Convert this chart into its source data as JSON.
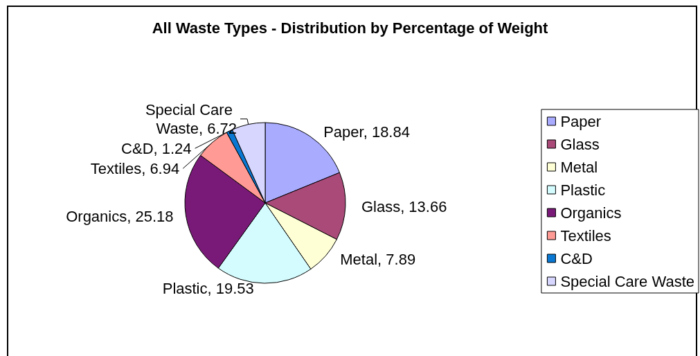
{
  "chart_data": {
    "type": "pie",
    "title": "All Waste Types - Distribution by Percentage of Weight",
    "categories": [
      "Paper",
      "Glass",
      "Metal",
      "Plastic",
      "Organics",
      "Textiles",
      "C&D",
      "Special Care Waste"
    ],
    "values": [
      18.84,
      13.66,
      7.89,
      19.53,
      25.18,
      6.94,
      1.24,
      6.72
    ],
    "value_labels": [
      "Paper, 18.84",
      "Glass, 13.66",
      "Metal, 7.89",
      "Plastic, 19.53",
      "Organics, 25.18",
      "Textiles, 6.94",
      "C&D, 1.24",
      "Special Care Waste, 6.72"
    ],
    "colors": [
      "#a9abff",
      "#a94a78",
      "#ffffd6",
      "#d4fcfe",
      "#7a1a78",
      "#ff9a94",
      "#0a78d2",
      "#d6d6ff"
    ],
    "legend": "right"
  }
}
